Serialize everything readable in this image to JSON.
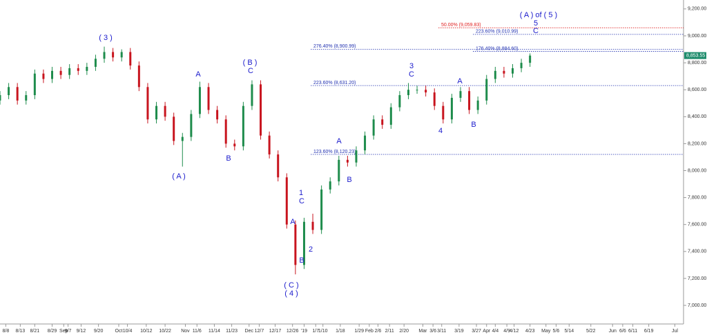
{
  "chart_data": {
    "type": "candlestick",
    "x": [
      0,
      3,
      6,
      9,
      12,
      15,
      18,
      21,
      24,
      27,
      30,
      33,
      36,
      39,
      42,
      45,
      48,
      51,
      54,
      57,
      60,
      63,
      66,
      69,
      72,
      75,
      78,
      81,
      84,
      87,
      90,
      93,
      96,
      99,
      102,
      105,
      108,
      111,
      114,
      117,
      120,
      123,
      126,
      129,
      132,
      135,
      138,
      141,
      144,
      147,
      150,
      153,
      156,
      159,
      162,
      165,
      168,
      171,
      174,
      177,
      180,
      183
    ],
    "open": [
      8520,
      8560,
      8620,
      8520,
      8560,
      8720,
      8680,
      8740,
      8710,
      8760,
      8740,
      8770,
      8830,
      8880,
      8840,
      8880,
      8780,
      8620,
      8380,
      8480,
      8400,
      8220,
      8250,
      8420,
      8620,
      8450,
      8380,
      8200,
      8180,
      8480,
      8640,
      8260,
      8120,
      7950,
      7600,
      7300,
      7620,
      7560,
      7860,
      7920,
      8080,
      8060,
      8150,
      8260,
      8380,
      8340,
      8470,
      8560,
      8600,
      8600,
      8580,
      8480,
      8380,
      8540,
      8590,
      8450,
      8520,
      8680,
      8740,
      8720,
      8760,
      8800
    ],
    "high": [
      8590,
      8650,
      8650,
      8590,
      8750,
      8750,
      8770,
      8770,
      8790,
      8790,
      8800,
      8860,
      8920,
      8910,
      8900,
      8910,
      8810,
      8650,
      8510,
      8510,
      8430,
      8280,
      8450,
      8660,
      8650,
      8480,
      8410,
      8230,
      8510,
      8670,
      8670,
      8290,
      8150,
      7980,
      7630,
      7650,
      7680,
      7890,
      7950,
      8110,
      8110,
      8180,
      8290,
      8410,
      8410,
      8500,
      8590,
      8650,
      8630,
      8630,
      8610,
      8510,
      8570,
      8620,
      8620,
      8550,
      8710,
      8770,
      8770,
      8790,
      8830,
      8870
    ],
    "low": [
      8490,
      8530,
      8490,
      8490,
      8530,
      8650,
      8650,
      8680,
      8680,
      8710,
      8710,
      8740,
      8800,
      8810,
      8810,
      8750,
      8590,
      8350,
      8350,
      8370,
      8190,
      8030,
      8220,
      8390,
      8420,
      8350,
      8170,
      8150,
      8150,
      8450,
      8230,
      8090,
      7920,
      7570,
      7230,
      7270,
      7530,
      7530,
      7830,
      7890,
      8030,
      8030,
      8120,
      8230,
      8310,
      8310,
      8440,
      8530,
      8570,
      8550,
      8450,
      8350,
      8350,
      8510,
      8420,
      8420,
      8490,
      8650,
      8690,
      8690,
      8730,
      8770
    ],
    "close": [
      8560,
      8620,
      8520,
      8560,
      8720,
      8680,
      8740,
      8710,
      8760,
      8740,
      8770,
      8830,
      8880,
      8840,
      8880,
      8780,
      8620,
      8380,
      8480,
      8400,
      8220,
      8250,
      8420,
      8620,
      8450,
      8380,
      8200,
      8180,
      8480,
      8640,
      8260,
      8120,
      7950,
      7600,
      7300,
      7620,
      7560,
      7860,
      7920,
      8080,
      8060,
      8150,
      8260,
      8380,
      8340,
      8470,
      8560,
      8600,
      8600,
      8580,
      8480,
      8380,
      8540,
      8590,
      8450,
      8520,
      8680,
      8740,
      8720,
      8760,
      8800,
      8853.55
    ],
    "up_color": "#1e8c4c",
    "down_color": "#c8141e",
    "xlim": [
      0,
      236
    ],
    "xticks": [
      {
        "value": 2,
        "label": "8/8"
      },
      {
        "value": 7,
        "label": "8/13"
      },
      {
        "value": 12,
        "label": "8/21"
      },
      {
        "value": 18,
        "label": "8/29"
      },
      {
        "value": 22,
        "label": "Sep"
      },
      {
        "value": 23.5,
        "label": "9/7"
      },
      {
        "value": 28,
        "label": "9/12"
      },
      {
        "value": 34,
        "label": "9/20"
      },
      {
        "value": 41,
        "label": "Oct"
      },
      {
        "value": 44,
        "label": "10/4"
      },
      {
        "value": 50.5,
        "label": "10/12"
      },
      {
        "value": 57,
        "label": "10/22"
      },
      {
        "value": 64,
        "label": "Nov"
      },
      {
        "value": 68,
        "label": "11/6"
      },
      {
        "value": 74,
        "label": "11/14"
      },
      {
        "value": 80,
        "label": "11/23"
      },
      {
        "value": 86,
        "label": "Dec"
      },
      {
        "value": 89.5,
        "label": "12/7"
      },
      {
        "value": 95,
        "label": "12/17"
      },
      {
        "value": 101,
        "label": "12/26"
      },
      {
        "value": 105,
        "label": "'19"
      },
      {
        "value": 109,
        "label": "1/7"
      },
      {
        "value": 111.5,
        "label": "1/10"
      },
      {
        "value": 117.5,
        "label": "1/18"
      },
      {
        "value": 124,
        "label": "1/29"
      },
      {
        "value": 127.5,
        "label": "Feb"
      },
      {
        "value": 130.5,
        "label": "2/6"
      },
      {
        "value": 134.5,
        "label": "2/11"
      },
      {
        "value": 139.5,
        "label": "2/20"
      },
      {
        "value": 146,
        "label": "Mar"
      },
      {
        "value": 149.5,
        "label": "3/6"
      },
      {
        "value": 152.5,
        "label": "3/11"
      },
      {
        "value": 158.5,
        "label": "3/19"
      },
      {
        "value": 164.5,
        "label": "3/27"
      },
      {
        "value": 168,
        "label": "Apr"
      },
      {
        "value": 171,
        "label": "4/4"
      },
      {
        "value": 175,
        "label": "4/9"
      },
      {
        "value": 177.5,
        "label": "4/12"
      },
      {
        "value": 183,
        "label": "4/23"
      },
      {
        "value": 188.5,
        "label": "May"
      },
      {
        "value": 192,
        "label": "5/6"
      },
      {
        "value": 196.5,
        "label": "5/14"
      },
      {
        "value": 204,
        "label": "5/22"
      },
      {
        "value": 211.5,
        "label": "Jun"
      },
      {
        "value": 215,
        "label": "6/6"
      },
      {
        "value": 218.5,
        "label": "6/11"
      },
      {
        "value": 224,
        "label": "6/19"
      },
      {
        "value": 233,
        "label": "Jul"
      }
    ],
    "ylim": [
      6862,
      9266
    ],
    "yticks": [
      {
        "value": 7000,
        "label": "7,000.00"
      },
      {
        "value": 7200,
        "label": "7,200.00"
      },
      {
        "value": 7400,
        "label": "7,400.00"
      },
      {
        "value": 7600,
        "label": "7,600.00"
      },
      {
        "value": 7800,
        "label": "7,800.00"
      },
      {
        "value": 8000,
        "label": "8,000.00"
      },
      {
        "value": 8200,
        "label": "8,200.00"
      },
      {
        "value": 8400,
        "label": "8,400.00"
      },
      {
        "value": 8600,
        "label": "8,600.00"
      },
      {
        "value": 8800,
        "label": "8,800.00"
      },
      {
        "value": 9000,
        "label": "9,000.00"
      },
      {
        "value": 9200,
        "label": "9,200.00"
      }
    ],
    "last_price": {
      "value": 8853.55,
      "label": "8,853.55",
      "color": "#1e8c6c"
    },
    "levels": [
      {
        "value": 9059.83,
        "label": "50.00% (9,059.83)",
        "color": "#e02020"
      },
      {
        "value": 9010.99,
        "label": "223.60% (9,010.99)",
        "color": "#2030b0"
      },
      {
        "value": 8900.99,
        "label": "276.40% (8,900.99)",
        "color": "#2030b0"
      },
      {
        "value": 8884.6,
        "label": "176.40% (8,884.60)",
        "color": "#2030b0"
      },
      {
        "value": 8631.2,
        "label": "223.60% (8,631.20)",
        "color": "#2030b0"
      },
      {
        "value": 8120.23,
        "label": "123.60% (8,120.23)",
        "color": "#2030b0"
      }
    ],
    "annotations": [
      "( 3 )",
      "A",
      "( B )",
      "C",
      "( A )",
      "B",
      "( C )",
      "( 4 )",
      "A",
      "B",
      "1",
      "C",
      "2",
      "A",
      "B",
      "3",
      "C",
      "4",
      "A",
      "B",
      "( A ) of ( 5 )",
      "5",
      "C"
    ]
  }
}
